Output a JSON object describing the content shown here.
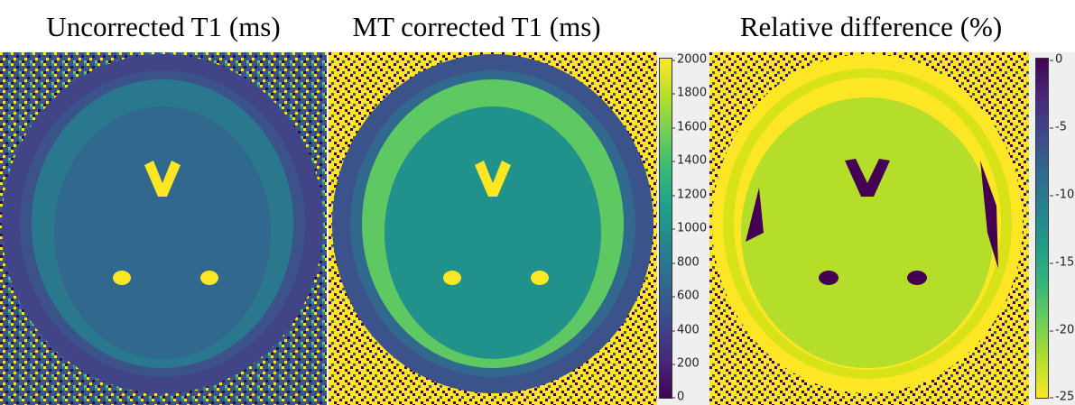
{
  "panels": [
    {
      "title": "Uncorrected T1 (ms)"
    },
    {
      "title": "MT corrected T1 (ms)"
    },
    {
      "title": "Relative difference (%)"
    }
  ],
  "colorbars": [
    {
      "ticks": [
        "2000",
        "1800",
        "1600",
        "1400",
        "1200",
        "1000",
        "800",
        "600",
        "400",
        "200",
        "0"
      ],
      "colormap": "viridis",
      "range": [
        0,
        2000
      ]
    },
    {
      "ticks": [
        "0",
        "-5",
        "-10",
        "-15",
        "-20",
        "-25"
      ],
      "colormap": "viridis-reversed",
      "range": [
        0,
        -25
      ]
    }
  ],
  "colors": {
    "viridis_low": "#440154",
    "viridis_mid": "#21918c",
    "viridis_high": "#fde725",
    "background": "#efefef"
  }
}
